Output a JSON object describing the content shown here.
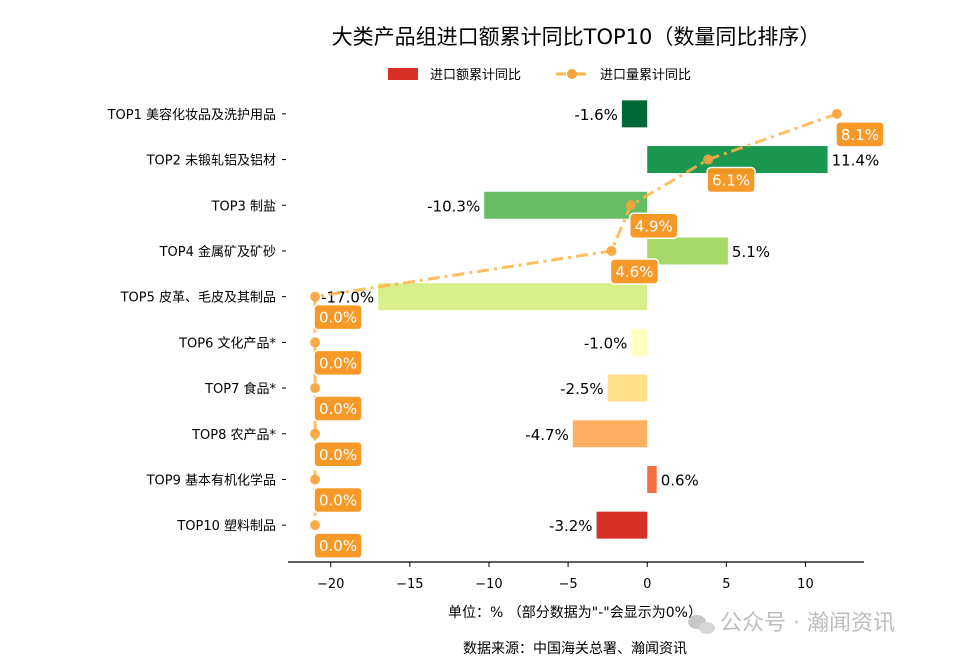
{
  "chart_data": {
    "type": "bar",
    "orientation": "horizontal",
    "title": "大类产品组进口额累计同比TOP10（数量同比排序）",
    "categories": [
      "TOP1 美容化妆品及洗护用品",
      "TOP2 未锻轧铝及铝材",
      "TOP3 制盐",
      "TOP4 金属矿及矿砂",
      "TOP5 皮革、毛皮及其制品",
      "TOP6 文化产品*",
      "TOP7 食品*",
      "TOP8 农产品*",
      "TOP9 基本有机化学品",
      "TOP10 塑料制品"
    ],
    "series": [
      {
        "name": "进口额累计同比",
        "type": "bar",
        "values": [
          -1.6,
          11.4,
          -10.3,
          5.1,
          -17.0,
          -1.0,
          -2.5,
          -4.7,
          0.6,
          -3.2
        ],
        "labels": [
          "-1.6%",
          "11.4%",
          "-10.3%",
          "5.1%",
          "-17.0%",
          "-1.0%",
          "-2.5%",
          "-4.7%",
          "0.6%",
          "-3.2%"
        ],
        "colors": [
          "#006837",
          "#1a9850",
          "#66bd63",
          "#a6d96a",
          "#d9ef8b",
          "#ffffbf",
          "#fee08b",
          "#fdae61",
          "#f46d43",
          "#d73027"
        ]
      },
      {
        "name": "进口量累计同比",
        "type": "line",
        "axis": "secondary",
        "values": [
          8.1,
          6.1,
          4.9,
          4.6,
          0.0,
          0.0,
          0.0,
          0.0,
          0.0,
          0.0
        ],
        "labels": [
          "8.1%",
          "6.1%",
          "4.9%",
          "4.6%",
          "0.0%",
          "0.0%",
          "0.0%",
          "0.0%",
          "0.0%",
          "0.0%"
        ],
        "color": "#ffb347",
        "label_color": "#f7941d"
      }
    ],
    "xlim": [
      -22.7,
      13.7
    ],
    "secondary_xlim": [
      -0.42,
      8.52
    ],
    "xticks": [
      -20,
      -15,
      -10,
      -5,
      0,
      5,
      10
    ],
    "xtick_labels": [
      "−20",
      "−15",
      "−10",
      "−5",
      "0",
      "5",
      "10"
    ],
    "xlabel": "单位：%  （部分数据为\"-\"会显示为0%）",
    "source": "数据来源：中国海关总署、瀚闻资讯",
    "watermark": "公众号 · 瀚闻资讯",
    "legend_position": "top-center",
    "grid": false
  }
}
